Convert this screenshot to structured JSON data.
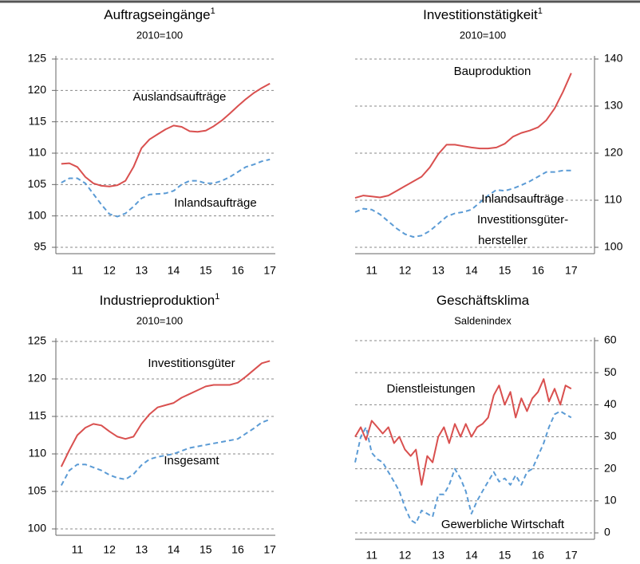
{
  "chart_data": [
    {
      "type": "line",
      "title": "Auftragseingänge",
      "title_note": "1",
      "subtitle": "2010=100",
      "x": [
        2011.0,
        2011.25,
        2011.5,
        2011.75,
        2012.0,
        2012.25,
        2012.5,
        2012.75,
        2013.0,
        2013.25,
        2013.5,
        2013.75,
        2014.0,
        2014.25,
        2014.5,
        2014.75,
        2015.0,
        2015.25,
        2015.5,
        2015.75,
        2016.0,
        2016.25,
        2016.5,
        2016.75,
        2017.0,
        2017.25,
        2017.5
      ],
      "series": [
        {
          "name": "Auslandsaufträge",
          "color": "#d9504f",
          "dash": false,
          "values": [
            108.3,
            108.4,
            107.8,
            106.2,
            105.2,
            104.8,
            104.7,
            104.9,
            105.6,
            107.8,
            110.8,
            112.2,
            113.0,
            113.8,
            114.4,
            114.2,
            113.5,
            113.4,
            113.6,
            114.3,
            115.2,
            116.3,
            117.5,
            118.6,
            119.6,
            120.4,
            121.1
          ]
        },
        {
          "name": "Inlandsaufträge",
          "color": "#5b9bd5",
          "dash": true,
          "values": [
            105.3,
            106.0,
            106.0,
            105.2,
            103.5,
            101.8,
            100.3,
            99.9,
            100.4,
            101.5,
            102.8,
            103.4,
            103.5,
            103.6,
            104.0,
            105.0,
            105.6,
            105.6,
            105.2,
            105.2,
            105.6,
            106.2,
            107.0,
            107.8,
            108.2,
            108.7,
            109.0
          ]
        }
      ],
      "annotations": [
        "Auslandsaufträge",
        "Inlandsaufträge"
      ],
      "xlim": [
        2010.83,
        2017.67
      ],
      "xticks": [
        {
          "value": 2011.5,
          "label": "11"
        },
        {
          "value": 2012.5,
          "label": "12"
        },
        {
          "value": 2013.5,
          "label": "13"
        },
        {
          "value": 2014.5,
          "label": "14"
        },
        {
          "value": 2015.5,
          "label": "15"
        },
        {
          "value": 2016.5,
          "label": "16"
        },
        {
          "value": 2017.5,
          "label": "17"
        }
      ],
      "ylim": [
        95,
        125
      ],
      "yticks": [
        95,
        100,
        105,
        110,
        115,
        120,
        125
      ],
      "y_axis_side": "left",
      "grid": true
    },
    {
      "type": "line",
      "title": "Investitionstätigkeit",
      "title_note": "1",
      "subtitle": "2010=100",
      "x": [
        2011.0,
        2011.25,
        2011.5,
        2011.75,
        2012.0,
        2012.25,
        2012.5,
        2012.75,
        2013.0,
        2013.25,
        2013.5,
        2013.75,
        2014.0,
        2014.25,
        2014.5,
        2014.75,
        2015.0,
        2015.25,
        2015.5,
        2015.75,
        2016.0,
        2016.25,
        2016.5,
        2016.75,
        2017.0,
        2017.25,
        2017.5
      ],
      "series": [
        {
          "name": "Bauproduktion",
          "color": "#d9504f",
          "dash": false,
          "values": [
            110.5,
            111.0,
            110.8,
            110.6,
            111.0,
            112.0,
            113.0,
            114.0,
            115.0,
            117.0,
            119.8,
            121.8,
            121.8,
            121.5,
            121.2,
            121.0,
            121.0,
            121.2,
            122.0,
            123.5,
            124.3,
            124.8,
            125.5,
            127.0,
            129.5,
            133.0,
            137.0
          ]
        },
        {
          "name": "Inlandsaufträge Investitionsgüterhersteller",
          "color": "#5b9bd5",
          "dash": true,
          "values": [
            107.5,
            108.2,
            108.0,
            107.0,
            105.5,
            104.0,
            102.8,
            102.2,
            102.5,
            103.5,
            105.0,
            106.5,
            107.2,
            107.5,
            108.0,
            109.5,
            111.0,
            112.2,
            112.0,
            112.5,
            113.2,
            114.0,
            115.0,
            116.0,
            116.0,
            116.3,
            116.3
          ]
        }
      ],
      "annotations": [
        "Bauproduktion",
        "Inlandsaufträge",
        "Investitionsgüter-",
        "hersteller"
      ],
      "xlim": [
        2011.0,
        2018.2
      ],
      "xticks": [
        {
          "value": 2011.5,
          "label": "11"
        },
        {
          "value": 2012.5,
          "label": "12"
        },
        {
          "value": 2013.5,
          "label": "13"
        },
        {
          "value": 2014.5,
          "label": "14"
        },
        {
          "value": 2015.5,
          "label": "15"
        },
        {
          "value": 2016.5,
          "label": "16"
        },
        {
          "value": 2017.5,
          "label": "17"
        }
      ],
      "ylim": [
        100,
        140
      ],
      "yticks": [
        100,
        110,
        120,
        130,
        140
      ],
      "y_axis_side": "right",
      "grid": true
    },
    {
      "type": "line",
      "title": "Industrieproduktion",
      "title_note": "1",
      "subtitle": "2010=100",
      "x": [
        2011.0,
        2011.25,
        2011.5,
        2011.75,
        2012.0,
        2012.25,
        2012.5,
        2012.75,
        2013.0,
        2013.25,
        2013.5,
        2013.75,
        2014.0,
        2014.25,
        2014.5,
        2014.75,
        2015.0,
        2015.25,
        2015.5,
        2015.75,
        2016.0,
        2016.25,
        2016.5,
        2016.75,
        2017.0,
        2017.25,
        2017.5
      ],
      "series": [
        {
          "name": "Investitionsgüter",
          "color": "#d9504f",
          "dash": false,
          "values": [
            108.3,
            110.5,
            112.5,
            113.5,
            114.0,
            113.8,
            113.0,
            112.3,
            112.0,
            112.3,
            114.0,
            115.3,
            116.2,
            116.5,
            116.8,
            117.5,
            118.0,
            118.5,
            119.0,
            119.2,
            119.2,
            119.2,
            119.5,
            120.3,
            121.2,
            122.1,
            122.4
          ]
        },
        {
          "name": "Insgesamt",
          "color": "#5b9bd5",
          "dash": true,
          "values": [
            105.8,
            107.8,
            108.6,
            108.6,
            108.2,
            107.8,
            107.2,
            106.8,
            106.6,
            107.3,
            108.5,
            109.3,
            109.6,
            109.8,
            110.0,
            110.4,
            110.8,
            111.0,
            111.2,
            111.4,
            111.6,
            111.8,
            112.0,
            112.7,
            113.4,
            114.2,
            114.6
          ]
        }
      ],
      "annotations": [
        "Investitionsgüter",
        "Insgesamt"
      ],
      "xlim": [
        2010.83,
        2017.67
      ],
      "xticks": [
        {
          "value": 2011.5,
          "label": "11"
        },
        {
          "value": 2012.5,
          "label": "12"
        },
        {
          "value": 2013.5,
          "label": "13"
        },
        {
          "value": 2014.5,
          "label": "14"
        },
        {
          "value": 2015.5,
          "label": "15"
        },
        {
          "value": 2016.5,
          "label": "16"
        },
        {
          "value": 2017.5,
          "label": "17"
        }
      ],
      "ylim": [
        100,
        125
      ],
      "yticks": [
        100,
        105,
        110,
        115,
        120,
        125
      ],
      "y_axis_side": "left",
      "grid": true
    },
    {
      "type": "line",
      "title": "Geschäftsklima",
      "subtitle": "Saldenindex",
      "x": [
        2011.0,
        2011.17,
        2011.33,
        2011.5,
        2011.67,
        2011.83,
        2012.0,
        2012.17,
        2012.33,
        2012.5,
        2012.67,
        2012.83,
        2013.0,
        2013.17,
        2013.33,
        2013.5,
        2013.67,
        2013.83,
        2014.0,
        2014.17,
        2014.33,
        2014.5,
        2014.67,
        2014.83,
        2015.0,
        2015.17,
        2015.33,
        2015.5,
        2015.67,
        2015.83,
        2016.0,
        2016.17,
        2016.33,
        2016.5,
        2016.67,
        2016.83,
        2017.0,
        2017.17,
        2017.33,
        2017.5
      ],
      "series": [
        {
          "name": "Dienstleistungen",
          "color": "#d9504f",
          "dash": false,
          "values": [
            30,
            33,
            29,
            35,
            33,
            31,
            33,
            28,
            30,
            26,
            24,
            26,
            15,
            24,
            22,
            30,
            33,
            28,
            34,
            30,
            34,
            30,
            33,
            34,
            36,
            43,
            46,
            40,
            44,
            36,
            42,
            38,
            42,
            44,
            48,
            41,
            45,
            40,
            46,
            45
          ]
        },
        {
          "name": "Gewerbliche Wirtschaft",
          "color": "#5b9bd5",
          "dash": true,
          "values": [
            22,
            30,
            33,
            25,
            23,
            22,
            19,
            16,
            13,
            8,
            4,
            3,
            7,
            6,
            5,
            12,
            12,
            15,
            20,
            17,
            13,
            6,
            10,
            13,
            16,
            19,
            16,
            17,
            15,
            18,
            15,
            19,
            20,
            24,
            28,
            33,
            37,
            38,
            37,
            36
          ]
        }
      ],
      "annotations": [
        "Dienstleistungen",
        "Gewerbliche Wirtschaft"
      ],
      "xlim": [
        2011.0,
        2018.2
      ],
      "xticks": [
        {
          "value": 2011.5,
          "label": "11"
        },
        {
          "value": 2012.5,
          "label": "12"
        },
        {
          "value": 2013.5,
          "label": "13"
        },
        {
          "value": 2014.5,
          "label": "14"
        },
        {
          "value": 2015.5,
          "label": "15"
        },
        {
          "value": 2016.5,
          "label": "16"
        },
        {
          "value": 2017.5,
          "label": "17"
        }
      ],
      "ylim": [
        0,
        60
      ],
      "yticks": [
        0,
        10,
        20,
        30,
        40,
        50,
        60
      ],
      "y_axis_side": "right",
      "grid": true
    }
  ]
}
